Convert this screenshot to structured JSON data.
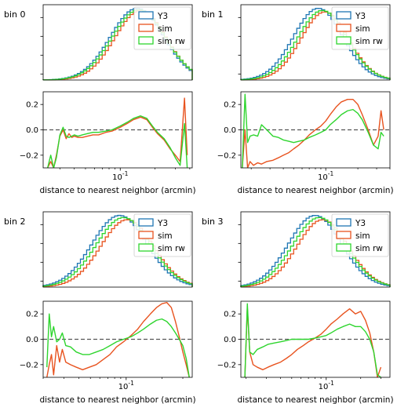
{
  "colors": {
    "Y3": "#1f77b4",
    "sim": "#e8531f",
    "sim rw": "#2ed52e",
    "zero_line": "#555555"
  },
  "chart_data": [
    {
      "type": "line",
      "panel_title": "bin 0",
      "legend_loc": "upper right",
      "xlabel": "distance to nearest neighbor (arcmin)",
      "xscale": "log",
      "xtick_labels": [
        "10^-1"
      ],
      "hist": {
        "type": "step-histogram",
        "ylim": [
          0,
          1.05
        ],
        "series": [
          {
            "name": "Y3",
            "peak": 0.14,
            "width": 0.6,
            "height": 1.0
          },
          {
            "name": "sim",
            "peak": 0.15,
            "width": 0.58,
            "height": 0.97
          },
          {
            "name": "sim rw",
            "peak": 0.145,
            "width": 0.6,
            "height": 0.98
          }
        ]
      },
      "ratio": {
        "ylim": [
          -0.3,
          0.3
        ],
        "yticks": [
          "0.2",
          "0.0",
          "−0.2"
        ],
        "x": [
          0.0235,
          0.025,
          0.0265,
          0.028,
          0.03,
          0.032,
          0.034,
          0.036,
          0.038,
          0.04,
          0.043,
          0.047,
          0.052,
          0.058,
          0.065,
          0.075,
          0.085,
          0.1,
          0.115,
          0.13,
          0.15,
          0.17,
          0.19,
          0.21,
          0.24,
          0.27,
          0.3,
          0.33,
          0.36,
          0.38
        ],
        "series": [
          {
            "name": "sim",
            "values": [
              -0.3,
              -0.25,
              -0.3,
              -0.2,
              -0.05,
              0.0,
              -0.07,
              -0.03,
              -0.06,
              -0.05,
              -0.06,
              -0.06,
              -0.05,
              -0.04,
              -0.04,
              -0.02,
              -0.01,
              0.02,
              0.05,
              0.08,
              0.1,
              0.08,
              0.02,
              -0.03,
              -0.08,
              -0.15,
              -0.2,
              -0.25,
              0.25,
              -0.2
            ]
          },
          {
            "name": "sim rw",
            "values": [
              -0.3,
              -0.2,
              -0.3,
              -0.22,
              -0.04,
              0.02,
              -0.05,
              -0.06,
              -0.05,
              -0.04,
              -0.05,
              -0.04,
              -0.03,
              -0.02,
              -0.02,
              -0.01,
              0.0,
              0.03,
              0.06,
              0.09,
              0.11,
              0.09,
              0.03,
              -0.02,
              -0.07,
              -0.14,
              -0.22,
              -0.28,
              0.05,
              -0.3
            ]
          }
        ]
      }
    },
    {
      "type": "line",
      "panel_title": "bin 1",
      "legend_loc": "upper right",
      "xlabel": "distance to nearest neighbor (arcmin)",
      "xscale": "log",
      "xtick_labels": [
        "10^-1"
      ],
      "hist": {
        "type": "step-histogram",
        "ylim": [
          0,
          1.05
        ],
        "series": [
          {
            "name": "Y3",
            "peak": 0.085,
            "width": 0.6,
            "height": 1.0
          },
          {
            "name": "sim",
            "peak": 0.098,
            "width": 0.58,
            "height": 0.95
          },
          {
            "name": "sim rw",
            "peak": 0.093,
            "width": 0.6,
            "height": 0.97
          }
        ]
      },
      "ratio": {
        "ylim": [
          -0.3,
          0.3
        ],
        "yticks": [
          "0.2",
          "0.0",
          "−0.2"
        ],
        "x": [
          0.0165,
          0.0175,
          0.0185,
          0.0195,
          0.021,
          0.023,
          0.025,
          0.028,
          0.032,
          0.036,
          0.04,
          0.045,
          0.05,
          0.056,
          0.063,
          0.07,
          0.08,
          0.09,
          0.1,
          0.11,
          0.125,
          0.14,
          0.16,
          0.18,
          0.2,
          0.22,
          0.25,
          0.28,
          0.31,
          0.33,
          0.35
        ],
        "series": [
          {
            "name": "sim",
            "values": [
              -0.3,
              0.0,
              -0.3,
              -0.25,
              -0.28,
              -0.26,
              -0.27,
              -0.25,
              -0.24,
              -0.22,
              -0.2,
              -0.18,
              -0.15,
              -0.12,
              -0.08,
              -0.04,
              0.0,
              0.03,
              0.07,
              0.12,
              0.18,
              0.22,
              0.24,
              0.24,
              0.2,
              0.12,
              0.0,
              -0.12,
              -0.05,
              0.15,
              0.0
            ]
          },
          {
            "name": "sim rw",
            "values": [
              -0.3,
              0.28,
              -0.1,
              -0.05,
              -0.04,
              -0.05,
              0.04,
              0.0,
              -0.05,
              -0.06,
              -0.08,
              -0.09,
              -0.1,
              -0.09,
              -0.08,
              -0.06,
              -0.04,
              -0.02,
              0.0,
              0.04,
              0.08,
              0.12,
              0.15,
              0.16,
              0.13,
              0.08,
              -0.02,
              -0.12,
              -0.15,
              -0.02,
              -0.05
            ]
          }
        ]
      }
    },
    {
      "type": "line",
      "panel_title": "bin 2",
      "legend_loc": "upper right",
      "xlabel": "distance to nearest neighbor (arcmin)",
      "xscale": "log",
      "xtick_labels": [
        "10^-1"
      ],
      "hist": {
        "type": "step-histogram",
        "ylim": [
          0,
          1.05
        ],
        "series": [
          {
            "name": "Y3",
            "peak": 0.088,
            "width": 0.6,
            "height": 1.0
          },
          {
            "name": "sim",
            "peak": 0.102,
            "width": 0.58,
            "height": 0.94
          },
          {
            "name": "sim rw",
            "peak": 0.095,
            "width": 0.6,
            "height": 0.97
          }
        ]
      },
      "ratio": {
        "ylim": [
          -0.3,
          0.3
        ],
        "yticks": [
          "0.2",
          "0.0",
          "−0.2"
        ],
        "x": [
          0.0215,
          0.0225,
          0.0235,
          0.0245,
          0.026,
          0.0275,
          0.029,
          0.031,
          0.034,
          0.038,
          0.043,
          0.049,
          0.056,
          0.064,
          0.073,
          0.083,
          0.095,
          0.11,
          0.125,
          0.14,
          0.16,
          0.18,
          0.2,
          0.22,
          0.24,
          0.26,
          0.28,
          0.3,
          0.32,
          0.34
        ],
        "series": [
          {
            "name": "sim",
            "values": [
              -0.3,
              -0.2,
              -0.12,
              -0.28,
              -0.05,
              -0.18,
              -0.08,
              -0.18,
              -0.2,
              -0.22,
              -0.24,
              -0.22,
              -0.2,
              -0.16,
              -0.12,
              -0.06,
              -0.02,
              0.03,
              0.08,
              0.14,
              0.2,
              0.25,
              0.28,
              0.29,
              0.25,
              0.14,
              0.02,
              -0.1,
              -0.2,
              -0.3
            ]
          },
          {
            "name": "sim rw",
            "values": [
              -0.22,
              0.2,
              0.02,
              0.1,
              -0.02,
              0.0,
              0.05,
              -0.05,
              -0.06,
              -0.1,
              -0.12,
              -0.12,
              -0.1,
              -0.08,
              -0.05,
              -0.02,
              0.0,
              0.02,
              0.05,
              0.08,
              0.12,
              0.15,
              0.16,
              0.14,
              0.1,
              0.05,
              0.0,
              -0.05,
              -0.15,
              -0.3
            ]
          }
        ]
      }
    },
    {
      "type": "line",
      "panel_title": "bin 3",
      "legend_loc": "upper right",
      "xlabel": "distance to nearest neighbor (arcmin)",
      "xscale": "log",
      "xtick_labels": [
        "10^-1"
      ],
      "hist": {
        "type": "step-histogram",
        "ylim": [
          0,
          1.05
        ],
        "series": [
          {
            "name": "Y3",
            "peak": 0.08,
            "width": 0.6,
            "height": 1.0
          },
          {
            "name": "sim",
            "peak": 0.093,
            "width": 0.58,
            "height": 0.94
          },
          {
            "name": "sim rw",
            "peak": 0.087,
            "width": 0.6,
            "height": 0.97
          }
        ]
      },
      "ratio": {
        "ylim": [
          -0.3,
          0.3
        ],
        "yticks": [
          "0.2",
          "0.0",
          "−0.2"
        ],
        "x": [
          0.0195,
          0.0205,
          0.0215,
          0.023,
          0.025,
          0.028,
          0.031,
          0.035,
          0.04,
          0.045,
          0.05,
          0.056,
          0.063,
          0.07,
          0.08,
          0.09,
          0.1,
          0.11,
          0.125,
          0.14,
          0.16,
          0.18,
          0.2,
          0.22,
          0.24,
          0.26,
          0.28,
          0.3
        ],
        "series": [
          {
            "name": "sim",
            "values": [
              -0.3,
              0.25,
              -0.1,
              -0.2,
              -0.22,
              -0.24,
              -0.22,
              -0.2,
              -0.18,
              -0.15,
              -0.12,
              -0.08,
              -0.05,
              -0.02,
              0.01,
              0.04,
              0.08,
              0.12,
              0.16,
              0.2,
              0.24,
              0.2,
              0.22,
              0.15,
              0.05,
              -0.1,
              -0.3,
              -0.22
            ]
          },
          {
            "name": "sim rw",
            "values": [
              -0.3,
              0.28,
              -0.1,
              -0.12,
              -0.08,
              -0.06,
              -0.04,
              -0.03,
              -0.02,
              -0.01,
              0.0,
              0.0,
              0.0,
              0.0,
              0.01,
              0.02,
              0.03,
              0.05,
              0.08,
              0.1,
              0.12,
              0.1,
              0.1,
              0.06,
              0.0,
              -0.1,
              -0.28,
              -0.3
            ]
          }
        ]
      }
    }
  ]
}
